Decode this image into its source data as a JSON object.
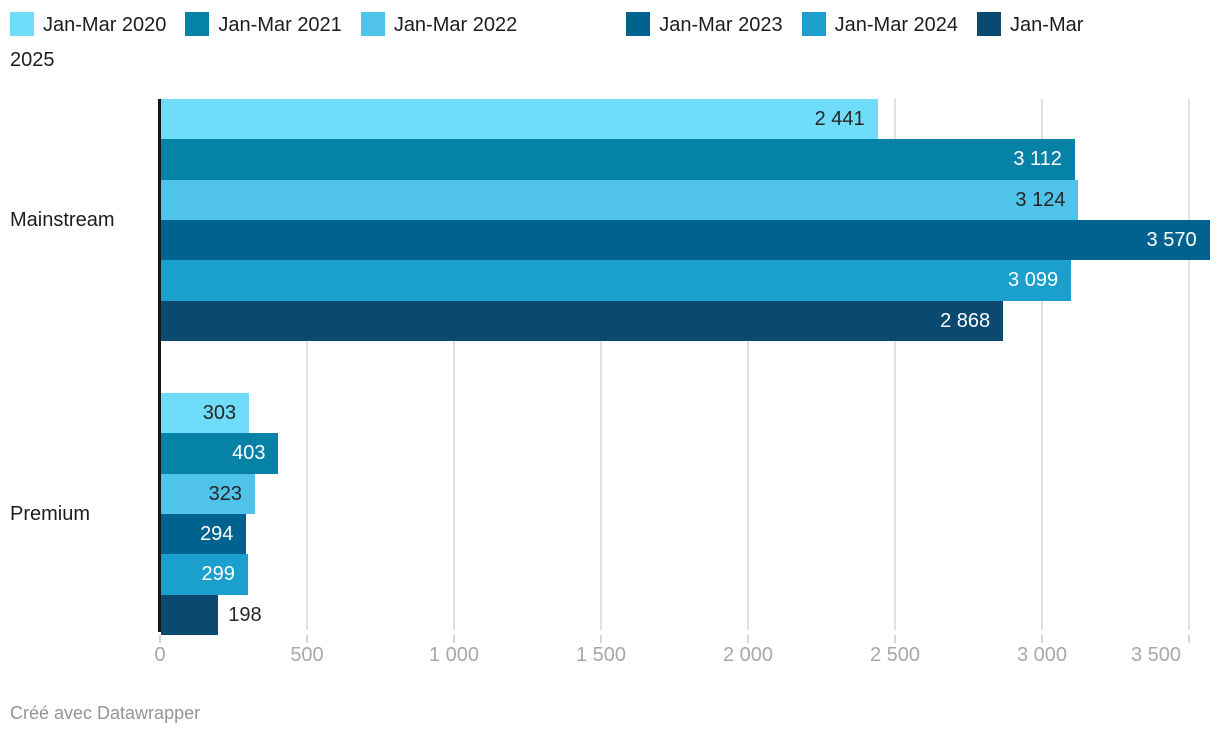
{
  "chart_data": {
    "type": "bar",
    "orientation": "horizontal",
    "categories": [
      "Mainstream",
      "Premium"
    ],
    "series": [
      {
        "name": "Jan-Mar 2020",
        "color": "#6FDCFB",
        "label_style": "dark",
        "values": [
          2441,
          303
        ],
        "display_values": [
          "2 441",
          "303"
        ]
      },
      {
        "name": "Jan-Mar 2021",
        "color": "#0682A7",
        "label_style": "light",
        "values": [
          3112,
          403
        ],
        "display_values": [
          "3 112",
          "403"
        ]
      },
      {
        "name": "Jan-Mar 2022",
        "color": "#4FC3EA",
        "label_style": "dark",
        "values": [
          3124,
          323
        ],
        "display_values": [
          "3 124",
          "323"
        ]
      },
      {
        "name": "Jan-Mar 2023",
        "color": "#00628E",
        "label_style": "light",
        "values": [
          3570,
          294
        ],
        "display_values": [
          "3 570",
          "294"
        ]
      },
      {
        "name": "Jan-Mar 2024",
        "color": "#1B9FCD",
        "label_style": "light",
        "values": [
          3099,
          299
        ],
        "display_values": [
          "3 099",
          "299"
        ]
      },
      {
        "name": "Jan-Mar 2025",
        "color": "#0B4A70",
        "label_style": "light",
        "values": [
          2868,
          198
        ],
        "display_values": [
          "2 868",
          "198"
        ]
      }
    ],
    "xlim": [
      0,
      3570
    ],
    "x_ticks": [
      0,
      500,
      1000,
      1500,
      2000,
      2500,
      3000,
      3500
    ],
    "x_tick_labels": [
      "0",
      "500",
      "1 000",
      "1 500",
      "2 000",
      "2 500",
      "3 000",
      "3 500"
    ],
    "grid": true,
    "legend_position": "top"
  },
  "colors": {
    "label_on_dark": "#ffffff",
    "label_on_light": "#262626",
    "category_label": "#1d1d1d",
    "tick_label": "#a8a8a8",
    "gridline": "#e0e0e0",
    "axis_line": "#161616",
    "credit": "#949494"
  },
  "footer": {
    "credit": "Créé avec Datawrapper"
  }
}
